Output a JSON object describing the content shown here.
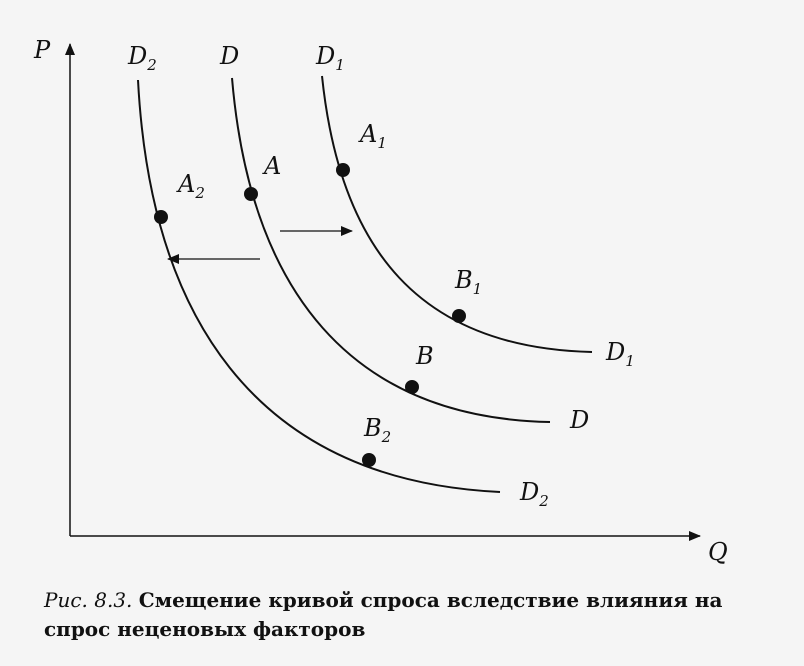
{
  "axes": {
    "y_label": "P",
    "x_label": "Q"
  },
  "curves": [
    {
      "id": "d2",
      "top_label": "D",
      "top_sub": "2",
      "end_label": "D",
      "end_sub": "2"
    },
    {
      "id": "d",
      "top_label": "D",
      "top_sub": "",
      "end_label": "D",
      "end_sub": ""
    },
    {
      "id": "d1",
      "top_label": "D",
      "top_sub": "1",
      "end_label": "D",
      "end_sub": "1"
    }
  ],
  "points": [
    {
      "id": "a2",
      "label": "A",
      "sub": "2"
    },
    {
      "id": "a",
      "label": "A",
      "sub": ""
    },
    {
      "id": "a1",
      "label": "A",
      "sub": "1"
    },
    {
      "id": "b2",
      "label": "B",
      "sub": "2"
    },
    {
      "id": "b",
      "label": "B",
      "sub": ""
    },
    {
      "id": "b1",
      "label": "B",
      "sub": "1"
    }
  ],
  "shifts": [
    {
      "id": "right",
      "direction": "right"
    },
    {
      "id": "left",
      "direction": "left"
    }
  ],
  "caption": {
    "figure_number": "Рис. 8.3.",
    "text": "Смещение кривой спроса вследствие влияния на спрос неценовых факторов"
  }
}
